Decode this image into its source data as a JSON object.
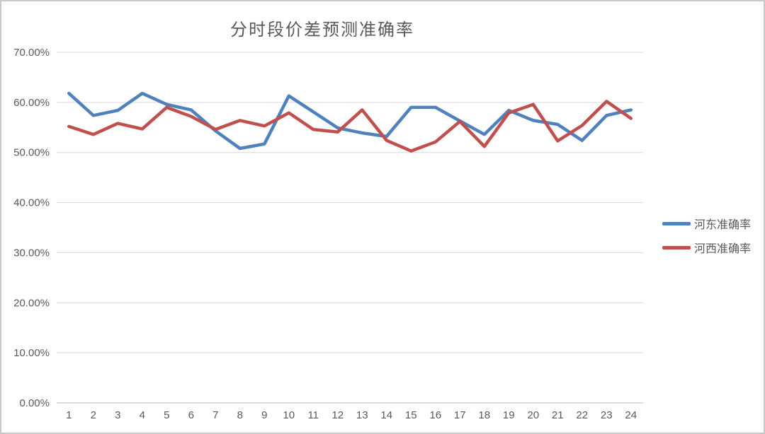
{
  "frame": {
    "background": "#ffffff",
    "border_color": "#c9c9c9"
  },
  "chart_data": {
    "type": "line",
    "title": "分时段价差预测准确率",
    "xlabel": "",
    "ylabel": "",
    "categories": [
      "1",
      "2",
      "3",
      "4",
      "5",
      "6",
      "7",
      "8",
      "9",
      "10",
      "11",
      "12",
      "13",
      "14",
      "15",
      "16",
      "17",
      "18",
      "19",
      "20",
      "21",
      "22",
      "23",
      "24"
    ],
    "series": [
      {
        "name": "河东准确率",
        "color": "#4F81BD",
        "values": [
          61.8,
          57.4,
          58.4,
          61.8,
          59.6,
          58.5,
          54.3,
          50.8,
          51.7,
          61.3,
          58.1,
          54.9,
          53.9,
          53.2,
          59.0,
          59.0,
          56.3,
          53.6,
          58.4,
          56.4,
          55.6,
          52.4,
          57.4,
          58.5
        ]
      },
      {
        "name": "河西准确率",
        "color": "#C0504D",
        "values": [
          55.2,
          53.6,
          55.8,
          54.7,
          59.0,
          57.2,
          54.6,
          56.4,
          55.3,
          57.9,
          54.6,
          54.1,
          58.5,
          52.4,
          50.3,
          52.1,
          56.2,
          51.2,
          57.9,
          59.6,
          52.3,
          55.4,
          60.2,
          56.8
        ]
      }
    ],
    "y_axis": {
      "min": 0,
      "max": 70,
      "step": 10,
      "tick_labels_top_to_bottom": [
        "70.00%",
        "60.00%",
        "50.00%",
        "40.00%",
        "30.00%",
        "20.00%",
        "10.00%",
        "0.00%"
      ]
    },
    "grid": true,
    "legend_position": "right",
    "colors": {
      "gridline": "#d9d9d9",
      "axis_line": "#bfbfbf",
      "tick_text": "#595959",
      "title_text": "#595959"
    }
  }
}
